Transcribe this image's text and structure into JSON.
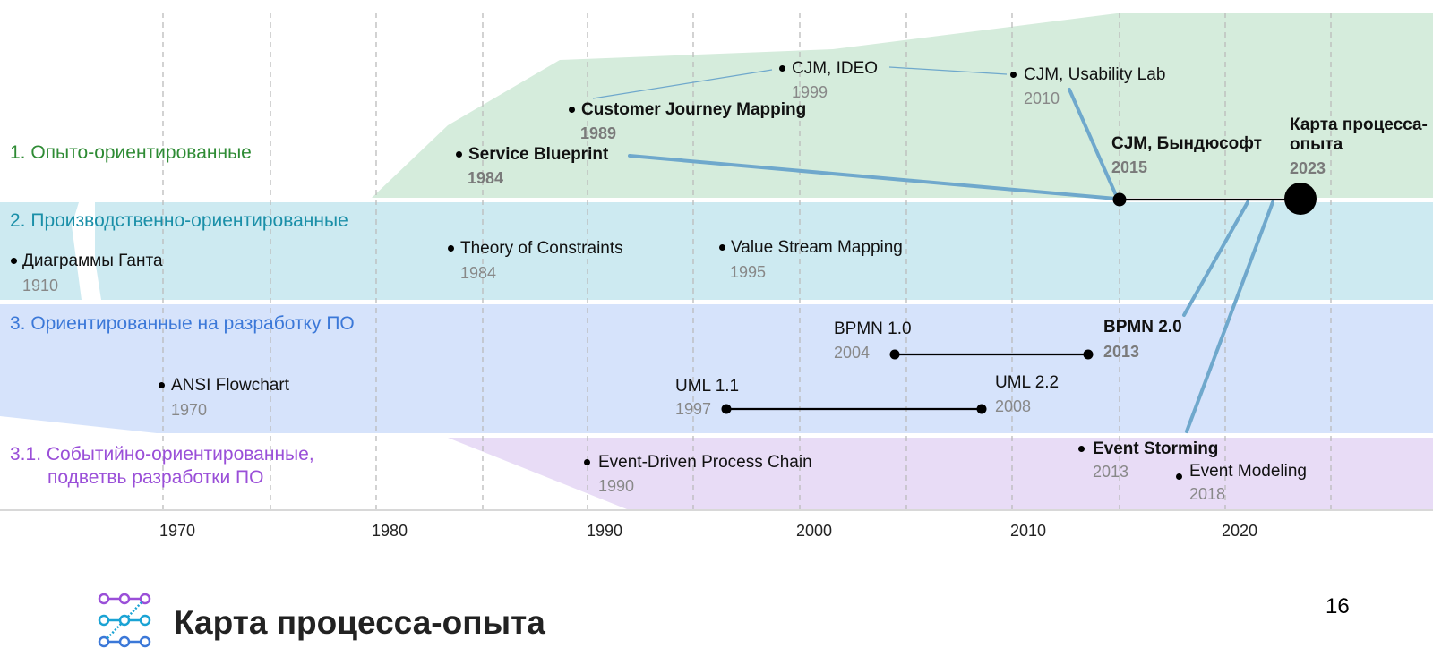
{
  "header_fragment": "",
  "categories": [
    {
      "id": "cat1",
      "label": "1. Опыто-ориентированные",
      "color": "#2e8b34"
    },
    {
      "id": "cat2",
      "label": "2. Производственно-ориентированные",
      "color": "#1a8fa8"
    },
    {
      "id": "cat3",
      "label": "3. Ориентированные на разработку ПО",
      "color": "#3b78d8"
    },
    {
      "id": "cat31",
      "label": "3.1. Событийно-ориентированные,",
      "label2": "подветвь разработки ПО",
      "color": "#9a4fd8"
    }
  ],
  "band_colors": {
    "cat1": "#d5ecdc",
    "cat2": "#cdeaf1",
    "cat3": "#d6e3fb",
    "cat31": "#e8dcf6"
  },
  "link_color": "#6fa8cc",
  "axis_ticks": [
    "1970",
    "1980",
    "1990",
    "2000",
    "2010",
    "2020"
  ],
  "events": {
    "gantt": {
      "label": "Диаграммы Ганта",
      "year": "1910"
    },
    "ansi": {
      "label": "ANSI Flowchart",
      "year": "1970"
    },
    "sb": {
      "label": "Service Blueprint",
      "year": "1984"
    },
    "toc": {
      "label": "Theory of Constraints",
      "year": "1984"
    },
    "cjm_mapping": {
      "label": "Customer Journey Mapping",
      "year": "1989"
    },
    "epc": {
      "label": "Event-Driven Process Chain",
      "year": "1990"
    },
    "vsm": {
      "label": "Value Stream Mapping",
      "year": "1995"
    },
    "uml11": {
      "label": "UML 1.1",
      "year": "1997"
    },
    "cjm_ideo": {
      "label": "CJM, IDEO",
      "year": "1999"
    },
    "bpmn10": {
      "label": "BPMN 1.0",
      "year": "2004"
    },
    "uml22": {
      "label": "UML 2.2",
      "year": "2008"
    },
    "cjm_ul": {
      "label": "CJM, Usability Lab",
      "year": "2010"
    },
    "bpmn20": {
      "label": "BPMN 2.0",
      "year": "2013"
    },
    "es": {
      "label": "Event Storming",
      "year": "2013"
    },
    "cjm_b": {
      "label": "CJM, Бындюсофт",
      "year": "2015"
    },
    "em": {
      "label": "Event Modeling",
      "year": "2018"
    },
    "kpo": {
      "label": "Карта процесса-",
      "label2": "опыта",
      "year": "2023"
    }
  },
  "footer": {
    "title": "Карта процесса-опыта",
    "page": "16",
    "logo": "process-experience-map-logo-icon"
  }
}
